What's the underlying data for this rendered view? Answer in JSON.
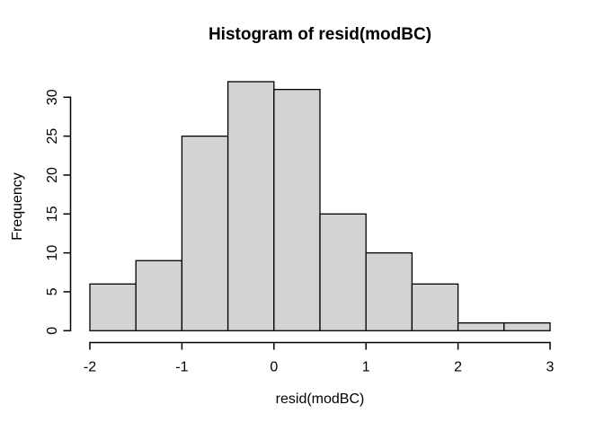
{
  "chart_data": {
    "type": "bar",
    "chart_kind": "histogram",
    "title": "Histogram of resid(modBC)",
    "xlabel": "resid(modBC)",
    "ylabel": "Frequency",
    "breaks": [
      -2,
      -1.5,
      -1,
      -0.5,
      0,
      0.5,
      1,
      1.5,
      2,
      2.5,
      3
    ],
    "counts": [
      6,
      9,
      25,
      32,
      31,
      15,
      10,
      6,
      1,
      1
    ],
    "x_ticks": [
      -2,
      -1,
      0,
      1,
      2,
      3
    ],
    "y_ticks": [
      0,
      5,
      10,
      15,
      20,
      25,
      30
    ],
    "xlim": [
      -2.2,
      3.2
    ],
    "ylim": [
      0,
      33.3
    ],
    "grid": false,
    "legend": "none",
    "colors": {
      "bar_fill": "#d3d3d3",
      "bar_stroke": "#000000",
      "axis": "#000000",
      "text": "#000000",
      "background": "#ffffff"
    }
  }
}
